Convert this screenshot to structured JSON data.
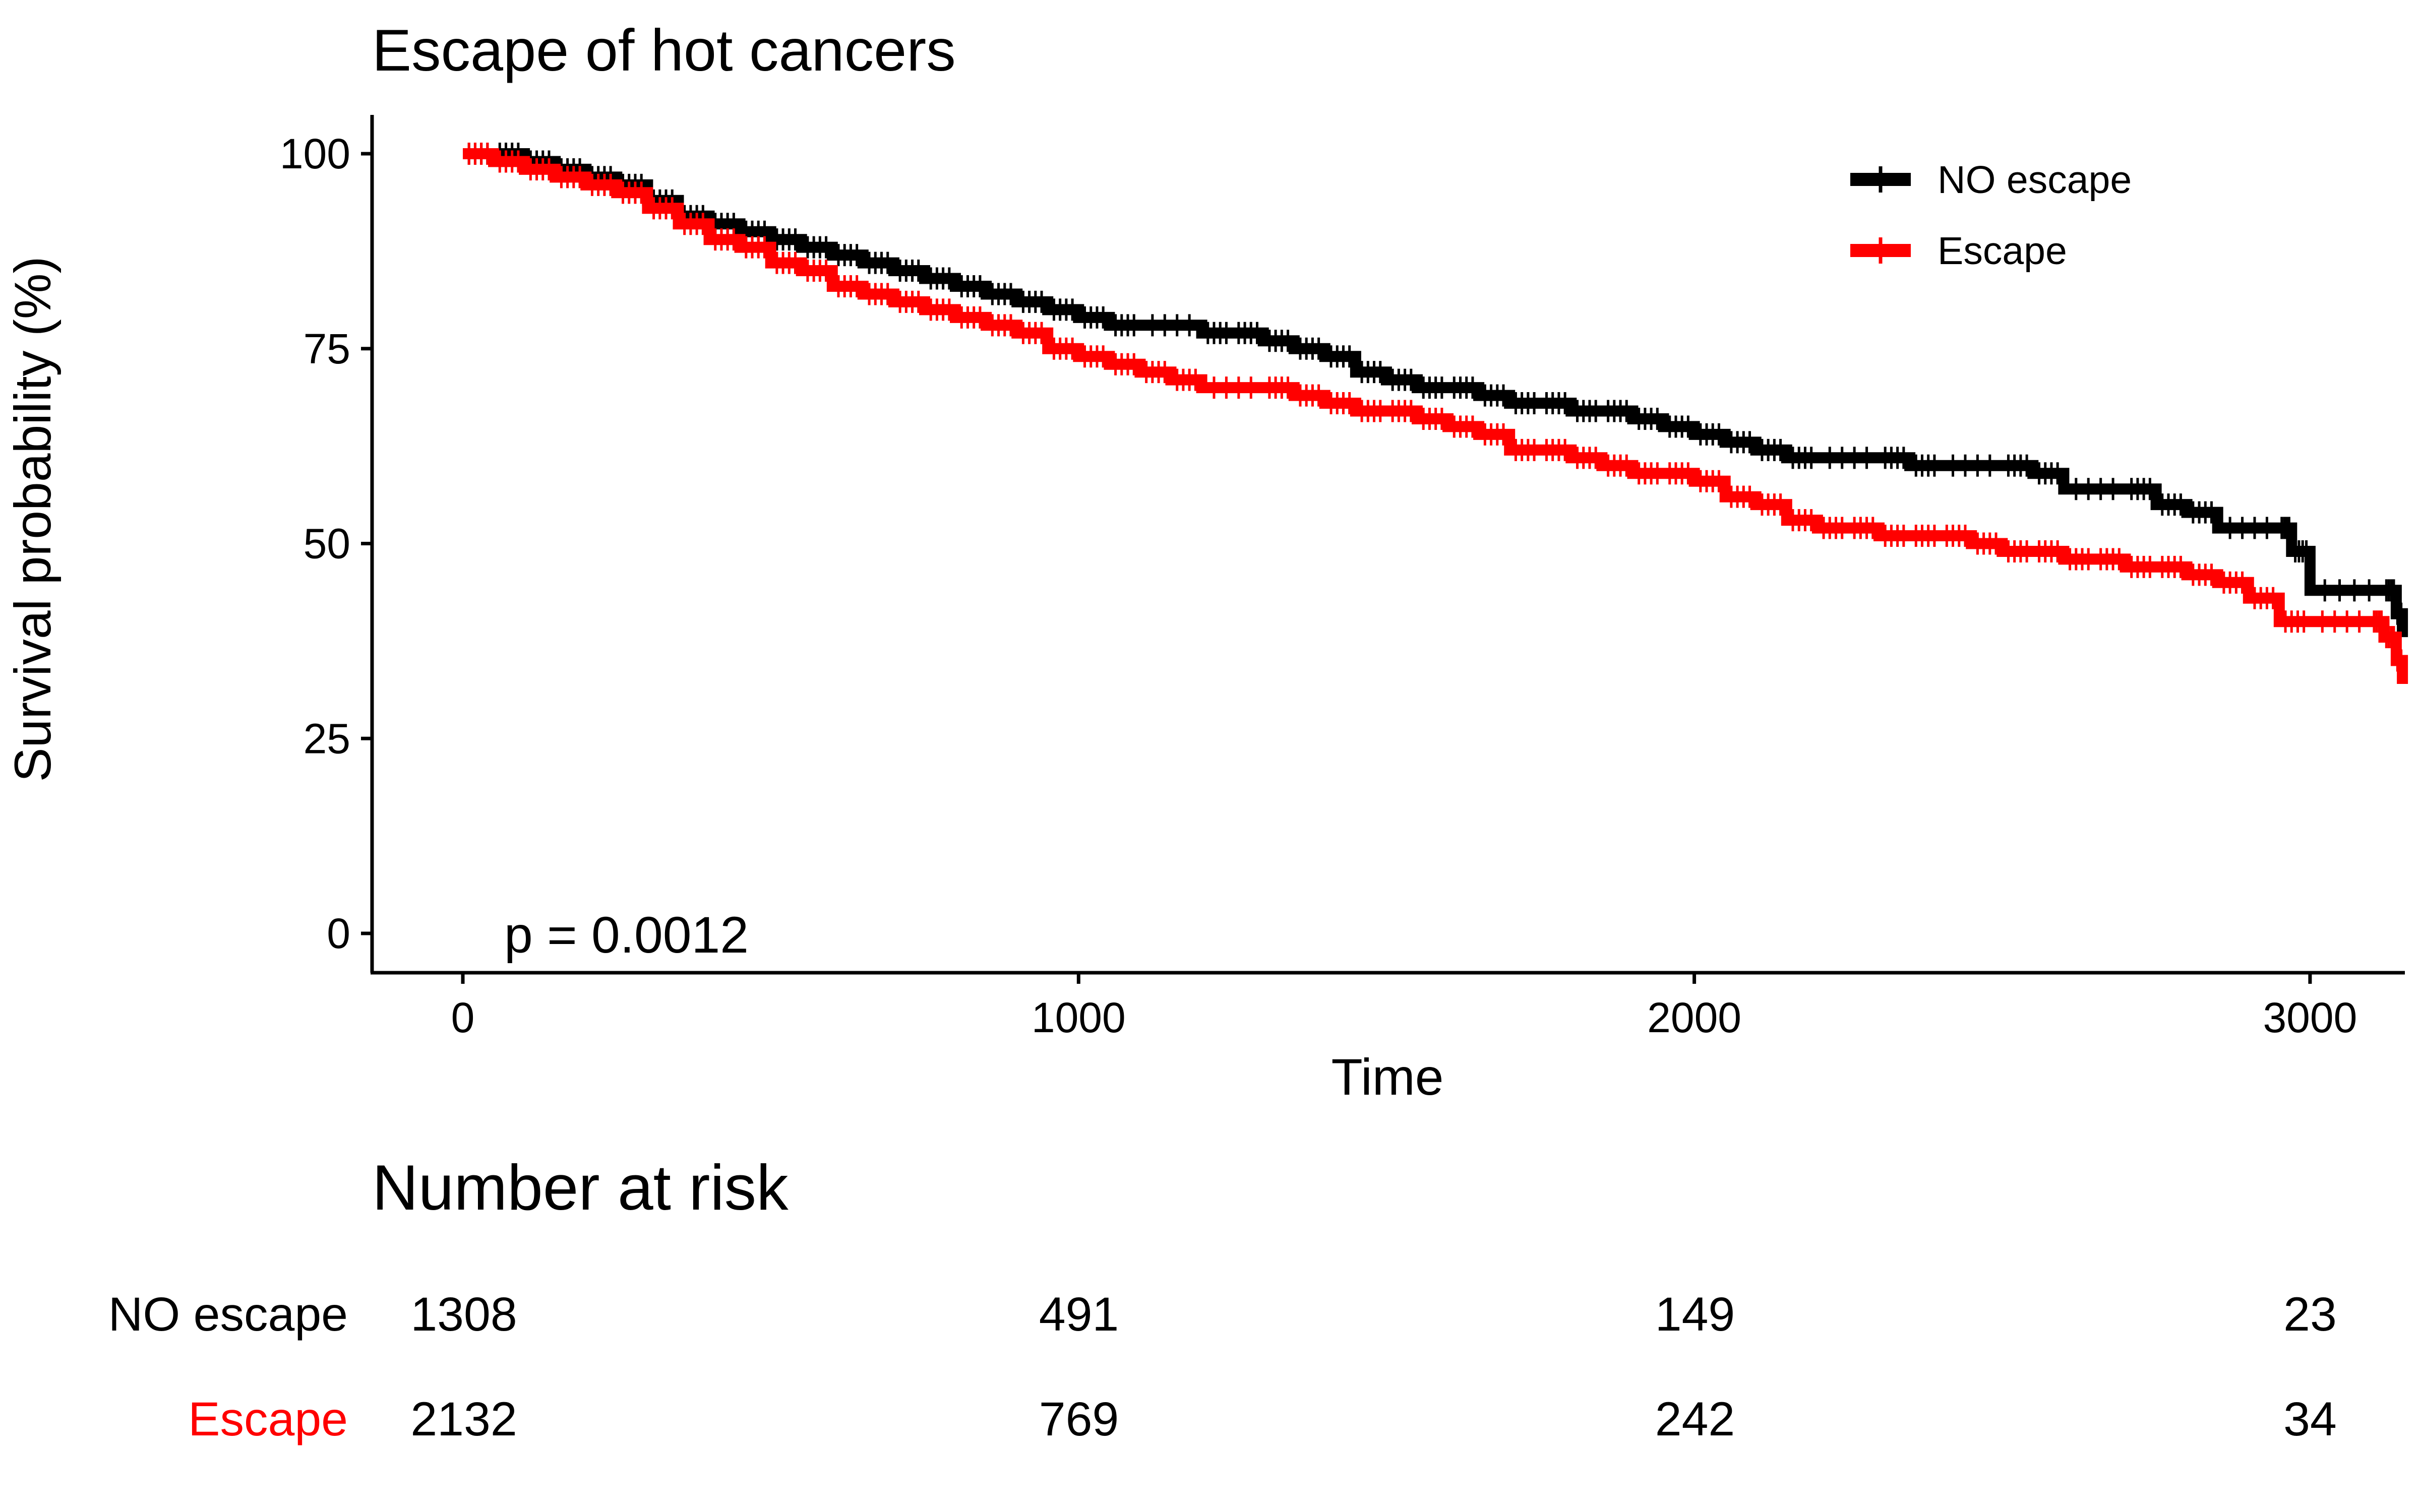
{
  "chart_data": {
    "type": "line",
    "title": "Escape of hot cancers",
    "xlabel": "Time",
    "ylabel": "Survival probability (%)",
    "xlim": [
      -150,
      3150
    ],
    "ylim": [
      -5,
      105
    ],
    "x_ticks": [
      0,
      1000,
      2000,
      3000
    ],
    "y_ticks": [
      0,
      25,
      50,
      75,
      100
    ],
    "grid": false,
    "legend_position": "top-right",
    "annotation": "p = 0.0012",
    "series": [
      {
        "name": "NO escape",
        "color": "#000000",
        "points": [
          [
            0,
            100
          ],
          [
            50,
            100
          ],
          [
            100,
            99
          ],
          [
            150,
            98
          ],
          [
            200,
            97
          ],
          [
            250,
            96
          ],
          [
            300,
            94
          ],
          [
            350,
            92
          ],
          [
            400,
            91
          ],
          [
            450,
            90
          ],
          [
            500,
            89
          ],
          [
            550,
            88
          ],
          [
            600,
            87
          ],
          [
            650,
            86
          ],
          [
            700,
            85
          ],
          [
            750,
            84
          ],
          [
            800,
            83
          ],
          [
            850,
            82
          ],
          [
            900,
            81
          ],
          [
            950,
            80
          ],
          [
            1000,
            79
          ],
          [
            1050,
            78
          ],
          [
            1100,
            78
          ],
          [
            1200,
            77
          ],
          [
            1250,
            77
          ],
          [
            1300,
            76
          ],
          [
            1350,
            75
          ],
          [
            1400,
            74
          ],
          [
            1450,
            72
          ],
          [
            1500,
            71
          ],
          [
            1550,
            70
          ],
          [
            1600,
            70
          ],
          [
            1650,
            69
          ],
          [
            1700,
            68
          ],
          [
            1750,
            68
          ],
          [
            1800,
            67
          ],
          [
            1850,
            67
          ],
          [
            1900,
            66
          ],
          [
            1950,
            65
          ],
          [
            2000,
            64
          ],
          [
            2050,
            63
          ],
          [
            2100,
            62
          ],
          [
            2150,
            61
          ],
          [
            2200,
            61
          ],
          [
            2300,
            61
          ],
          [
            2350,
            60
          ],
          [
            2400,
            60
          ],
          [
            2500,
            60
          ],
          [
            2550,
            59
          ],
          [
            2600,
            57
          ],
          [
            2700,
            57
          ],
          [
            2750,
            55
          ],
          [
            2800,
            54
          ],
          [
            2850,
            52
          ],
          [
            2950,
            52
          ],
          [
            2970,
            49
          ],
          [
            3000,
            44
          ],
          [
            3120,
            44
          ],
          [
            3140,
            41
          ],
          [
            3150,
            38
          ]
        ]
      },
      {
        "name": "Escape",
        "color": "#FF0000",
        "points": [
          [
            0,
            100
          ],
          [
            50,
            99
          ],
          [
            100,
            98
          ],
          [
            150,
            97
          ],
          [
            200,
            96
          ],
          [
            250,
            95
          ],
          [
            300,
            93
          ],
          [
            350,
            91
          ],
          [
            400,
            89
          ],
          [
            450,
            88
          ],
          [
            500,
            86
          ],
          [
            550,
            85
          ],
          [
            600,
            83
          ],
          [
            650,
            82
          ],
          [
            700,
            81
          ],
          [
            750,
            80
          ],
          [
            800,
            79
          ],
          [
            850,
            78
          ],
          [
            900,
            77
          ],
          [
            950,
            75
          ],
          [
            1000,
            74
          ],
          [
            1050,
            73
          ],
          [
            1100,
            72
          ],
          [
            1150,
            71
          ],
          [
            1200,
            70
          ],
          [
            1300,
            70
          ],
          [
            1350,
            69
          ],
          [
            1400,
            68
          ],
          [
            1450,
            67
          ],
          [
            1500,
            67
          ],
          [
            1550,
            66
          ],
          [
            1600,
            65
          ],
          [
            1650,
            64
          ],
          [
            1700,
            62
          ],
          [
            1750,
            62
          ],
          [
            1800,
            61
          ],
          [
            1850,
            60
          ],
          [
            1900,
            59
          ],
          [
            1950,
            59
          ],
          [
            2000,
            58
          ],
          [
            2050,
            56
          ],
          [
            2100,
            55
          ],
          [
            2150,
            53
          ],
          [
            2200,
            52
          ],
          [
            2250,
            52
          ],
          [
            2300,
            51
          ],
          [
            2350,
            51
          ],
          [
            2400,
            51
          ],
          [
            2450,
            50
          ],
          [
            2500,
            49
          ],
          [
            2550,
            49
          ],
          [
            2600,
            48
          ],
          [
            2650,
            48
          ],
          [
            2700,
            47
          ],
          [
            2750,
            47
          ],
          [
            2800,
            46
          ],
          [
            2850,
            45
          ],
          [
            2900,
            43
          ],
          [
            2950,
            40
          ],
          [
            3000,
            40
          ],
          [
            3100,
            40
          ],
          [
            3120,
            38
          ],
          [
            3140,
            35
          ],
          [
            3150,
            32
          ]
        ]
      }
    ],
    "risk_table": {
      "title": "Number at risk",
      "times": [
        0,
        1000,
        2000,
        3000
      ],
      "rows": [
        {
          "label": "NO escape",
          "color": "#000000",
          "counts": [
            "1308",
            "491",
            "149",
            "23"
          ]
        },
        {
          "label": "Escape",
          "color": "#FF0000",
          "counts": [
            "2132",
            "769",
            "242",
            "34"
          ]
        }
      ]
    }
  }
}
